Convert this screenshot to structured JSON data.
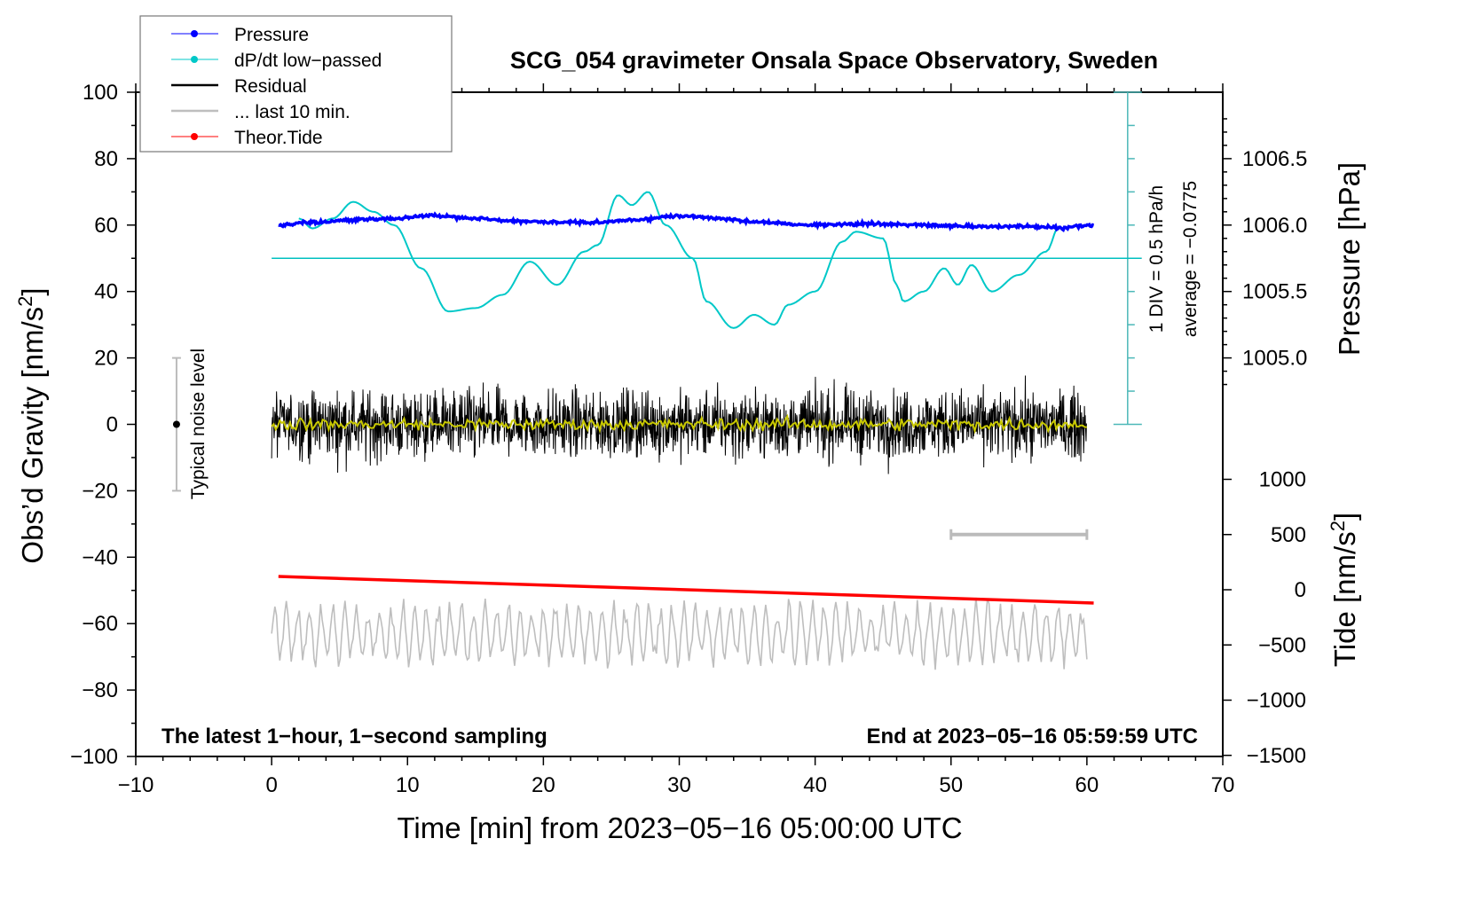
{
  "chart_data": {
    "type": "line",
    "title": "SCG_054 gravimeter Onsala Space Observatory, Sweden",
    "xlabel": "Time [min] from 2023−05−16 05:00:00 UTC",
    "ylabel_left": "Obs’d Gravity [nm/s",
    "ylabel_left_sup": "2",
    "ylabel_left_end": "]",
    "ylabel_right_pressure": "Pressure [hPa]",
    "ylabel_right_tide": "Tide [nm/s",
    "ylabel_right_tide_sup": "2",
    "ylabel_right_tide_end": "]",
    "xlim": [
      -10,
      70
    ],
    "ylim": [
      -100,
      100
    ],
    "x_ticks": [
      "−10",
      "0",
      "10",
      "20",
      "30",
      "40",
      "50",
      "60",
      "70"
    ],
    "y_ticks": [
      "100",
      "80",
      "60",
      "40",
      "20",
      "0",
      "−20",
      "−40",
      "−60",
      "−80",
      "−100"
    ],
    "pressure_ticks": [
      "1006.5",
      "1006.0",
      "1005.5",
      "1005.0"
    ],
    "tide_ticks": [
      "1000",
      "500",
      "0",
      "−500",
      "−1000",
      "−1500"
    ],
    "legend": {
      "placement": "top-left",
      "entries": [
        {
          "label": "Pressure",
          "color": "#0000ff",
          "marker": true
        },
        {
          "label": "dP/dt low−passed",
          "color": "#00c8c8",
          "marker": true
        },
        {
          "label": "Residual",
          "color": "#000000",
          "marker": false
        },
        {
          "label": "... last 10 min.",
          "color": "#bebebe",
          "marker": false
        },
        {
          "label": "Theor.Tide",
          "color": "#ff0000",
          "marker": true
        }
      ]
    },
    "annotations": {
      "div_label": "1 DIV = 0.5 hPa/h",
      "average_label": "average = −0.0775",
      "noise_label": "Typical noise level",
      "bottom_left": "The latest 1−hour, 1−second sampling",
      "bottom_right": "End at 2023−05−16 05:59:59 UTC"
    },
    "series": [
      {
        "name": "Pressure",
        "units": "hPa",
        "x": [
          0.5,
          3,
          6,
          9,
          12,
          15,
          18,
          21,
          24,
          27,
          30,
          33,
          36,
          40,
          44,
          48,
          52,
          56,
          58,
          60.5
        ],
        "y": [
          1006.0,
          1006.02,
          1006.04,
          1006.05,
          1006.07,
          1006.05,
          1006.03,
          1006.02,
          1006.02,
          1006.04,
          1006.07,
          1006.05,
          1006.02,
          1006.0,
          1006.01,
          1006.0,
          1005.99,
          1005.99,
          1005.98,
          1006.0
        ]
      },
      {
        "name": "dP/dt low-passed",
        "units": "gravity-axis",
        "x": [
          2,
          3,
          4.5,
          6,
          7.5,
          9,
          11,
          13,
          15,
          17,
          19,
          21,
          23,
          24,
          25.5,
          26.5,
          27.7,
          29,
          31,
          32,
          34,
          35.5,
          37,
          38,
          40,
          42,
          43,
          45,
          46,
          46.5,
          48,
          49.5,
          50.5,
          51.5,
          53,
          55,
          57,
          58
        ],
        "y": [
          62,
          59,
          62,
          67,
          64,
          60,
          47,
          34,
          35,
          39,
          49,
          42,
          52,
          54,
          69,
          66,
          70,
          60,
          50,
          37,
          29,
          33,
          30,
          36,
          40,
          55,
          58,
          56,
          42,
          37,
          40,
          47,
          42,
          48,
          40,
          45,
          52,
          60
        ]
      },
      {
        "name": "dP/dt average line",
        "y": 50
      },
      {
        "name": "Residual",
        "mean": 0,
        "typical_amplitude": 10
      },
      {
        "name": "Residual smoothed",
        "color": "#c8c800",
        "mean": 0
      },
      {
        "name": "... last 10 min.",
        "offset": -63,
        "typical_amplitude": 8
      },
      {
        "name": "Theor.Tide",
        "units": "nm/s2",
        "x": [
          0.5,
          60.5
        ],
        "y": [
          120,
          -120
        ]
      }
    ],
    "noise_level": {
      "x": -7,
      "range": [
        -20,
        20
      ]
    },
    "last10_bar": {
      "x": [
        50,
        60
      ],
      "tide": 500
    }
  }
}
